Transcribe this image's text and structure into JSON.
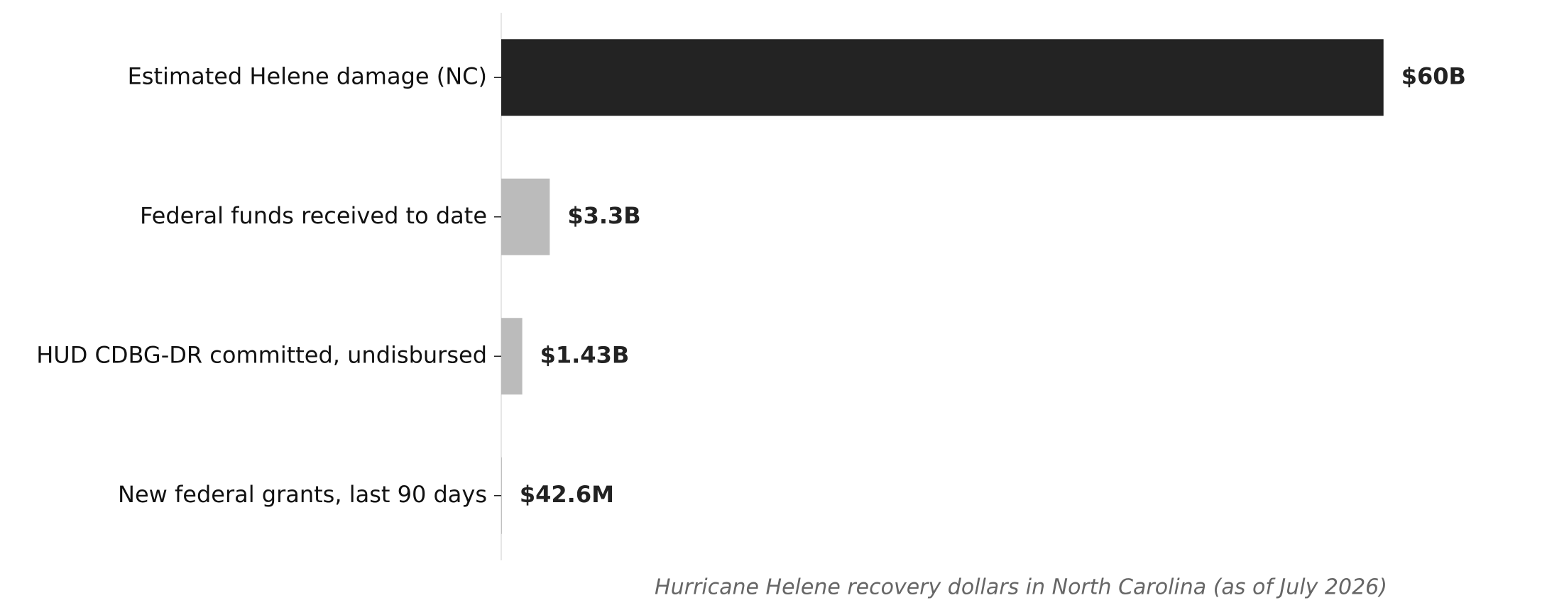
{
  "chart_data": {
    "type": "bar",
    "orientation": "horizontal",
    "title": "Hurricane Helene recovery dollars in North Carolina (as of July 2026)",
    "categories": [
      "Estimated Helene damage (NC)",
      "Federal funds received to date",
      "HUD CDBG-DR committed, undisbursed",
      "New federal grants, last 90 days"
    ],
    "values": [
      60,
      3.3,
      1.43,
      0.0426
    ],
    "value_labels": [
      "$60B",
      "$3.3B",
      "$1.43B",
      "$42.6M"
    ],
    "colors": [
      "#232323",
      "#bbbbbb",
      "#bbbbbb",
      "#bbbbbb"
    ],
    "xlim": [
      0,
      66
    ]
  }
}
